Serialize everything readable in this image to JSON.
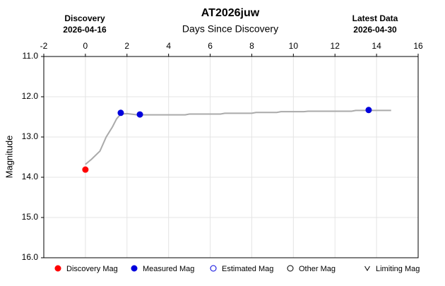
{
  "chart_data": {
    "type": "line",
    "title": "AT2026juw",
    "x_label": "Days Since Discovery",
    "y_label": "Magnitude",
    "annotations": [
      {
        "text": "Discovery",
        "date": "2026-04-16"
      },
      {
        "text": "Latest Data",
        "date": "2026-04-30"
      }
    ],
    "xlim": [
      -2,
      16
    ],
    "xticks": [
      -2,
      0,
      2,
      4,
      6,
      8,
      10,
      12,
      14,
      16
    ],
    "ylim": [
      11,
      16
    ],
    "y_reversed": true,
    "yticks": [
      {
        "value": 11,
        "label": "11.0"
      },
      {
        "value": 12,
        "label": "12.0"
      },
      {
        "value": 13,
        "label": "13.0"
      },
      {
        "value": 14,
        "label": "14.0"
      },
      {
        "value": 15,
        "label": "15.0"
      },
      {
        "value": 16,
        "label": "16.0"
      }
    ],
    "grid": true,
    "curve": {
      "color": "#aaaaaa",
      "x": [
        0,
        0.3,
        0.7,
        1.0,
        1.3,
        1.5,
        1.7,
        2.0,
        2.5,
        4.8,
        5.0,
        6.5,
        6.7,
        8.0,
        8.2,
        9.2,
        9.4,
        10.5,
        10.7,
        12.8,
        13.0,
        14.7
      ],
      "values": [
        13.68,
        13.55,
        13.35,
        13.0,
        12.75,
        12.55,
        12.43,
        12.42,
        12.45,
        12.45,
        12.43,
        12.43,
        12.41,
        12.41,
        12.39,
        12.39,
        12.37,
        12.37,
        12.36,
        12.36,
        12.34,
        12.34
      ]
    },
    "series": [
      {
        "name": "Discovery Mag",
        "color": "#ff0000",
        "marker": "filled",
        "x": [
          0
        ],
        "values": [
          13.81
        ]
      },
      {
        "name": "Measured Mag",
        "color": "#0000dd",
        "marker": "filled",
        "x": [
          1.7,
          2.62,
          13.62
        ],
        "values": [
          12.4,
          12.44,
          12.33
        ]
      },
      {
        "name": "Estimated Mag",
        "color": "#0000dd",
        "marker": "open",
        "x": [],
        "values": []
      },
      {
        "name": "Other Mag",
        "color": "#000000",
        "marker": "open",
        "x": [],
        "values": []
      },
      {
        "name": "Limiting Mag",
        "color": "#000000",
        "marker": "v",
        "x": [],
        "values": []
      }
    ]
  }
}
